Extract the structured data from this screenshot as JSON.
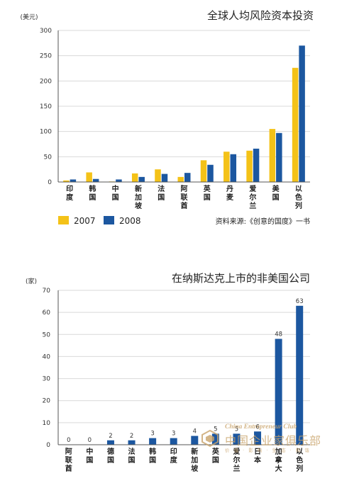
{
  "colors": {
    "series_2007": "#f4c218",
    "series_2008": "#1c57a0",
    "grid": "#d9d9d9"
  },
  "chart_data": [
    {
      "type": "bar",
      "title": "全球人均风险资本投资",
      "unit": "(美元)",
      "categories": [
        "印度",
        "韩国",
        "中国",
        "新加坡",
        "法国",
        "阿联酋",
        "英国",
        "丹麦",
        "爱尔兰",
        "美国",
        "以色列"
      ],
      "series": [
        {
          "name": "2007",
          "values": [
            3,
            19,
            1,
            17,
            25,
            10,
            43,
            60,
            62,
            105,
            226
          ]
        },
        {
          "name": "2008",
          "values": [
            5,
            6,
            5,
            10,
            16,
            18,
            34,
            55,
            66,
            97,
            270
          ]
        }
      ],
      "ylim": [
        0,
        300
      ],
      "yticks": [
        0,
        50,
        100,
        150,
        200,
        250,
        300
      ],
      "grid": true,
      "legend": "bottom-left",
      "source": "资料来源:《创意的国度》一书"
    },
    {
      "type": "bar",
      "title": "在纳斯达克上市的非美国公司",
      "unit": "(家)",
      "categories": [
        "阿联酋",
        "中国",
        "德国",
        "法国",
        "韩国",
        "印度",
        "新加坡",
        "英国",
        "爱尔兰",
        "日本",
        "加拿大",
        "以色列"
      ],
      "values": [
        0,
        0,
        2,
        2,
        3,
        3,
        4,
        5,
        5,
        6,
        48,
        63
      ],
      "data_labels": [
        "0",
        "0",
        "2",
        "2",
        "3",
        "3",
        "4",
        "5",
        "5",
        "6",
        "48",
        "63"
      ],
      "ylim": [
        0,
        70
      ],
      "yticks": [
        0,
        10,
        20,
        30,
        40,
        50,
        60,
        70
      ],
      "grid": true
    }
  ],
  "watermark": {
    "en": "China Entrepreneur Club",
    "cn": "中国企业家俱乐部",
    "sub": "价 值 · 影 响 · 生 态 · 和 谐"
  }
}
